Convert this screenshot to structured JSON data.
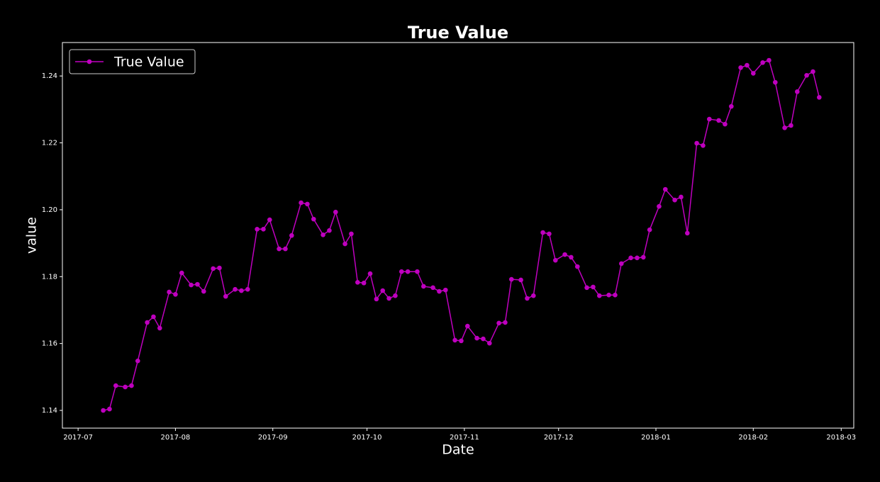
{
  "chart_data": {
    "type": "line",
    "title": "True Value",
    "x_label": "Date",
    "y_label": "value",
    "legend": "upper left",
    "grid": false,
    "xlim": [
      "2017-06-26",
      "2018-03-05"
    ],
    "xticks": [
      {
        "value": "2017-07-01",
        "label": "2017-07"
      },
      {
        "value": "2017-08-01",
        "label": "2017-08"
      },
      {
        "value": "2017-09-01",
        "label": "2017-09"
      },
      {
        "value": "2017-10-01",
        "label": "2017-10"
      },
      {
        "value": "2017-11-01",
        "label": "2017-11"
      },
      {
        "value": "2017-12-01",
        "label": "2017-12"
      },
      {
        "value": "2018-01-01",
        "label": "2018-01"
      },
      {
        "value": "2018-02-01",
        "label": "2018-02"
      },
      {
        "value": "2018-03-01",
        "label": "2018-03"
      }
    ],
    "ylim": [
      1.1347,
      1.25
    ],
    "yticks": [
      1.14,
      1.16,
      1.18,
      {
        "value": 1.2,
        "label": "1.20"
      },
      1.22,
      1.24
    ],
    "x": [
      "2017-07-09",
      "2017-07-11",
      "2017-07-13",
      "2017-07-16",
      "2017-07-18",
      "2017-07-20",
      "2017-07-23",
      "2017-07-25",
      "2017-07-27",
      "2017-07-30",
      "2017-08-01",
      "2017-08-03",
      "2017-08-06",
      "2017-08-08",
      "2017-08-10",
      "2017-08-13",
      "2017-08-15",
      "2017-08-17",
      "2017-08-20",
      "2017-08-22",
      "2017-08-24",
      "2017-08-27",
      "2017-08-29",
      "2017-08-31",
      "2017-09-03",
      "2017-09-05",
      "2017-09-07",
      "2017-09-10",
      "2017-09-12",
      "2017-09-14",
      "2017-09-17",
      "2017-09-19",
      "2017-09-21",
      "2017-09-24",
      "2017-09-26",
      "2017-09-28",
      "2017-09-30",
      "2017-10-02",
      "2017-10-04",
      "2017-10-06",
      "2017-10-08",
      "2017-10-10",
      "2017-10-12",
      "2017-10-14",
      "2017-10-17",
      "2017-10-19",
      "2017-10-22",
      "2017-10-24",
      "2017-10-26",
      "2017-10-29",
      "2017-10-31",
      "2017-11-02",
      "2017-11-05",
      "2017-11-07",
      "2017-11-09",
      "2017-11-12",
      "2017-11-14",
      "2017-11-16",
      "2017-11-19",
      "2017-11-21",
      "2017-11-23",
      "2017-11-26",
      "2017-11-28",
      "2017-11-30",
      "2017-12-03",
      "2017-12-05",
      "2017-12-07",
      "2017-12-10",
      "2017-12-12",
      "2017-12-14",
      "2017-12-17",
      "2017-12-19",
      "2017-12-21",
      "2017-12-24",
      "2017-12-26",
      "2017-12-28",
      "2017-12-30",
      "2018-01-02",
      "2018-01-04",
      "2018-01-07",
      "2018-01-09",
      "2018-01-11",
      "2018-01-14",
      "2018-01-16",
      "2018-01-18",
      "2018-01-21",
      "2018-01-23",
      "2018-01-25",
      "2018-01-28",
      "2018-01-30",
      "2018-02-01",
      "2018-02-04",
      "2018-02-06",
      "2018-02-08",
      "2018-02-11",
      "2018-02-13",
      "2018-02-15",
      "2018-02-18",
      "2018-02-20",
      "2018-02-22"
    ],
    "series": [
      {
        "name": "True Value",
        "color": "#bf00bf",
        "values": [
          1.14,
          1.1404,
          1.1474,
          1.147,
          1.1474,
          1.1548,
          1.1663,
          1.168,
          1.1646,
          1.1754,
          1.1747,
          1.1811,
          1.1775,
          1.1777,
          1.1756,
          1.1824,
          1.1826,
          1.1741,
          1.1762,
          1.1758,
          1.1762,
          1.1942,
          1.1942,
          1.197,
          1.1883,
          1.1883,
          1.1923,
          1.2021,
          1.2017,
          1.1972,
          1.1925,
          1.1938,
          1.1993,
          1.1898,
          1.1928,
          1.1783,
          1.1781,
          1.1809,
          1.1733,
          1.1758,
          1.1735,
          1.1743,
          1.1815,
          1.1815,
          1.1815,
          1.1771,
          1.1767,
          1.1756,
          1.176,
          1.161,
          1.1608,
          1.1652,
          1.1616,
          1.1614,
          1.1601,
          1.1661,
          1.1663,
          1.1792,
          1.179,
          1.1735,
          1.1743,
          1.1932,
          1.1928,
          1.1849,
          1.1866,
          1.1858,
          1.183,
          1.1767,
          1.1769,
          1.1743,
          1.1745,
          1.1745,
          1.1839,
          1.1856,
          1.1856,
          1.1858,
          1.194,
          1.201,
          1.2061,
          1.2029,
          1.2038,
          1.193,
          1.2199,
          1.2192,
          1.2271,
          1.2267,
          1.2256,
          1.2309,
          1.2425,
          1.2432,
          1.2408,
          1.244,
          1.2447,
          1.2381,
          1.2245,
          1.2252,
          1.2353,
          1.2402,
          1.2413,
          1.2336
        ]
      }
    ]
  }
}
